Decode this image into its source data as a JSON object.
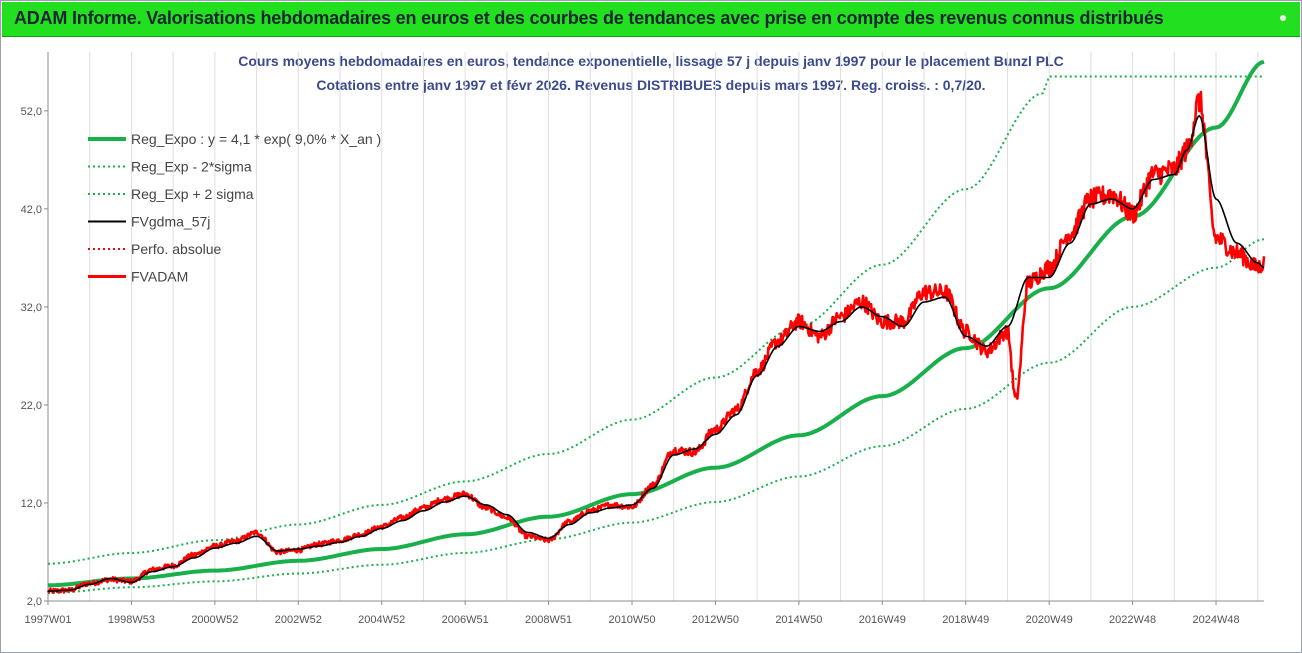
{
  "header": {
    "title": "ADAM Informe. Valorisations hebdomadaires en euros et des courbes de tendances avec prise en compte des revenus connus distribués"
  },
  "colors": {
    "banner": "#22e01f",
    "trend": "#19b04b",
    "band": "#19b04b",
    "gdma": "#000000",
    "perfo": "#e01010",
    "fvadam": "#ff0000",
    "title": "#3b4a8c"
  },
  "chart_data": {
    "type": "line",
    "title": "Cours moyens hebdomadaires en euros, tendance exponentielle, lissage 57 j depuis janv 1997 pour le placement Bunzl PLC",
    "subtitle": "Cotations entre janv 1997 et févr 2026. Revenus DISTRIBUES depuis mars 1997. Reg. croiss. : 0,7/20.",
    "xlabel": "",
    "ylabel": "",
    "ylim": [
      2,
      58
    ],
    "x_range": [
      1997.0,
      2026.15
    ],
    "yticks": [
      2,
      12,
      22,
      32,
      42,
      52
    ],
    "ytick_labels": [
      "2,0",
      "12,0",
      "22,0",
      "32,0",
      "42,0",
      "52,0"
    ],
    "xticks": [
      {
        "label": "1997W01",
        "x": 1997.0
      },
      {
        "label": "1998W53",
        "x": 1999.0
      },
      {
        "label": "2000W52",
        "x": 2001.0
      },
      {
        "label": "2002W52",
        "x": 2003.0
      },
      {
        "label": "2004W52",
        "x": 2005.0
      },
      {
        "label": "2006W51",
        "x": 2007.0
      },
      {
        "label": "2008W51",
        "x": 2009.0
      },
      {
        "label": "2010W50",
        "x": 2011.0
      },
      {
        "label": "2012W50",
        "x": 2013.0
      },
      {
        "label": "2014W50",
        "x": 2015.0
      },
      {
        "label": "2016W49",
        "x": 2017.0
      },
      {
        "label": "2018W49",
        "x": 2019.0
      },
      {
        "label": "2020W49",
        "x": 2021.0
      },
      {
        "label": "2022W48",
        "x": 2023.0
      },
      {
        "label": "2024W48",
        "x": 2025.0
      }
    ],
    "grid": "vertical",
    "legend_position": "top-left",
    "series": [
      {
        "name": "Reg_Expo : y = 4,1 * exp( 9,0% *  X_an )",
        "style": "solid-thick",
        "color": "#19b04b",
        "x": [
          1997,
          1999,
          2001,
          2003,
          2005,
          2007,
          2009,
          2011,
          2013,
          2015,
          2017,
          2019,
          2021,
          2023,
          2025,
          2026.15
        ],
        "values": [
          3.6,
          4.3,
          5.1,
          6.1,
          7.3,
          8.8,
          10.6,
          12.9,
          15.6,
          18.9,
          22.9,
          27.8,
          33.9,
          41.2,
          50.3,
          57.0
        ]
      },
      {
        "name": "Reg_Exp - 2*sigma",
        "style": "dotted",
        "color": "#19b04b",
        "x": [
          1997,
          1999,
          2001,
          2003,
          2005,
          2007,
          2009,
          2011,
          2013,
          2015,
          2017,
          2019,
          2021,
          2023,
          2025,
          2026.15
        ],
        "values": [
          2.8,
          3.4,
          4.0,
          4.8,
          5.7,
          6.9,
          8.3,
          10.0,
          12.1,
          14.7,
          17.8,
          21.6,
          26.3,
          32.0,
          36.0,
          38.9
        ]
      },
      {
        "name": "Reg_Exp + 2 sigma",
        "style": "dotted",
        "color": "#19b04b",
        "x": [
          1997,
          1999,
          2001,
          2003,
          2005,
          2007,
          2009,
          2011,
          2013,
          2015,
          2017,
          2019,
          2020.85,
          2021,
          2023,
          2025,
          2026.15
        ],
        "values": [
          5.8,
          6.9,
          8.2,
          9.8,
          11.8,
          14.2,
          17.0,
          20.5,
          24.8,
          30.0,
          36.3,
          44.0,
          53.8,
          55.5,
          55.5,
          55.5,
          55.5
        ]
      },
      {
        "name": "FVgdma_57j",
        "style": "solid",
        "color": "#000000",
        "x": [
          1997.0,
          1997.5,
          1998.0,
          1998.5,
          1999.0,
          1999.5,
          2000.0,
          2000.5,
          2001.0,
          2001.5,
          2002.0,
          2002.5,
          2003.0,
          2003.5,
          2004.0,
          2004.5,
          2005.0,
          2005.5,
          2006.0,
          2006.5,
          2007.0,
          2007.5,
          2008.0,
          2008.5,
          2009.0,
          2009.5,
          2010.0,
          2010.5,
          2011.0,
          2011.5,
          2012.0,
          2012.5,
          2013.0,
          2013.5,
          2014.0,
          2014.5,
          2015.0,
          2015.5,
          2016.0,
          2016.5,
          2017.0,
          2017.5,
          2018.0,
          2018.5,
          2019.0,
          2019.5,
          2020.0,
          2020.5,
          2021.0,
          2021.5,
          2022.0,
          2022.5,
          2023.0,
          2023.5,
          2024.0,
          2024.3,
          2024.6,
          2025.0,
          2025.5,
          2026.0,
          2026.15
        ],
        "values": [
          3.0,
          3.1,
          3.7,
          4.3,
          3.9,
          5.0,
          5.5,
          6.4,
          7.4,
          7.9,
          8.6,
          7.1,
          7.3,
          7.6,
          8.0,
          8.6,
          9.4,
          10.2,
          11.2,
          12.1,
          12.7,
          11.8,
          10.8,
          9.0,
          8.4,
          9.8,
          11.0,
          11.5,
          11.8,
          13.5,
          16.9,
          17.5,
          19.0,
          21.0,
          25.0,
          28.0,
          30.0,
          29.5,
          30.5,
          32.0,
          31.0,
          30.0,
          32.5,
          33.0,
          29.0,
          28.0,
          30.0,
          35.0,
          35.0,
          38.5,
          42.5,
          43.0,
          42.0,
          45.0,
          45.5,
          48.0,
          51.5,
          43.0,
          38.5,
          36.5,
          36.0
        ]
      },
      {
        "name": "Perfo. absolue",
        "style": "dotted",
        "color": "#e01010",
        "x": [],
        "values": []
      },
      {
        "name": "FVADAM",
        "style": "solid-thick-noisy",
        "color": "#ff0000",
        "x": [
          1997.0,
          1997.5,
          1998.0,
          1998.5,
          1999.0,
          1999.5,
          2000.0,
          2000.5,
          2001.0,
          2001.5,
          2002.0,
          2002.5,
          2003.0,
          2003.5,
          2004.0,
          2004.5,
          2005.0,
          2005.5,
          2006.0,
          2006.5,
          2007.0,
          2007.5,
          2008.0,
          2008.5,
          2009.0,
          2009.5,
          2010.0,
          2010.5,
          2011.0,
          2011.5,
          2012.0,
          2012.5,
          2013.0,
          2013.5,
          2014.0,
          2014.5,
          2015.0,
          2015.5,
          2016.0,
          2016.5,
          2017.0,
          2017.5,
          2018.0,
          2018.5,
          2019.0,
          2019.5,
          2020.0,
          2020.2,
          2020.5,
          2021.0,
          2021.5,
          2022.0,
          2022.5,
          2023.0,
          2023.5,
          2024.0,
          2024.3,
          2024.6,
          2025.0,
          2025.5,
          2026.0,
          2026.15
        ],
        "values": [
          3.0,
          3.1,
          3.8,
          4.2,
          4.0,
          5.2,
          5.6,
          6.7,
          7.6,
          8.1,
          9.0,
          7.0,
          7.2,
          7.8,
          8.2,
          8.8,
          9.6,
          10.5,
          11.5,
          12.4,
          12.9,
          11.5,
          10.5,
          8.6,
          8.2,
          10.1,
          11.2,
          11.8,
          11.6,
          13.8,
          17.4,
          17.2,
          19.5,
          21.5,
          25.5,
          28.5,
          30.5,
          29.0,
          31.0,
          32.5,
          30.5,
          30.5,
          33.5,
          33.5,
          29.5,
          27.5,
          29.5,
          22.5,
          34.5,
          36.0,
          39.5,
          43.0,
          43.5,
          41.5,
          45.5,
          46.0,
          48.0,
          53.0,
          39.0,
          37.5,
          36.0,
          36.5
        ]
      }
    ]
  }
}
